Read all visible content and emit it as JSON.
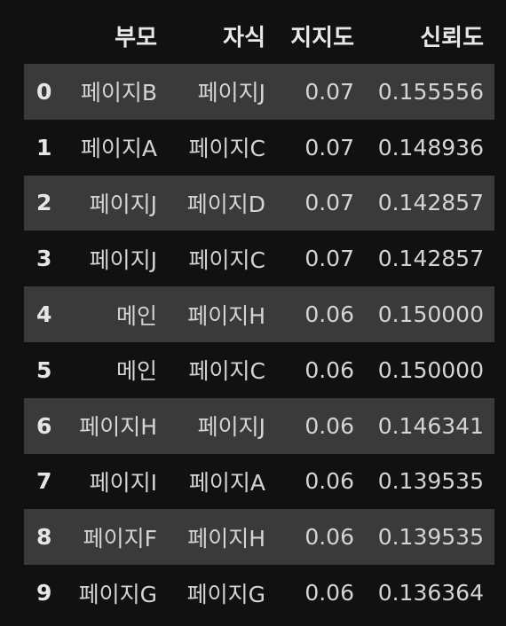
{
  "table": {
    "columns": [
      "",
      "부모",
      "자식",
      "지지도",
      "신뢰도"
    ],
    "rows": [
      {
        "index": "0",
        "parent": "페이지B",
        "child": "페이지J",
        "support": "0.07",
        "confidence": "0.155556"
      },
      {
        "index": "1",
        "parent": "페이지A",
        "child": "페이지C",
        "support": "0.07",
        "confidence": "0.148936"
      },
      {
        "index": "2",
        "parent": "페이지J",
        "child": "페이지D",
        "support": "0.07",
        "confidence": "0.142857"
      },
      {
        "index": "3",
        "parent": "페이지J",
        "child": "페이지C",
        "support": "0.07",
        "confidence": "0.142857"
      },
      {
        "index": "4",
        "parent": "메인",
        "child": "페이지H",
        "support": "0.06",
        "confidence": "0.150000"
      },
      {
        "index": "5",
        "parent": "메인",
        "child": "페이지C",
        "support": "0.06",
        "confidence": "0.150000"
      },
      {
        "index": "6",
        "parent": "페이지H",
        "child": "페이지J",
        "support": "0.06",
        "confidence": "0.146341"
      },
      {
        "index": "7",
        "parent": "페이지I",
        "child": "페이지A",
        "support": "0.06",
        "confidence": "0.139535"
      },
      {
        "index": "8",
        "parent": "페이지F",
        "child": "페이지H",
        "support": "0.06",
        "confidence": "0.139535"
      },
      {
        "index": "9",
        "parent": "페이지G",
        "child": "페이지G",
        "support": "0.06",
        "confidence": "0.136364"
      }
    ]
  },
  "colors": {
    "background": "#111111",
    "stripe": "#3a3a3a",
    "text": "#d4d4d4",
    "header_text": "#e8e8e8"
  }
}
